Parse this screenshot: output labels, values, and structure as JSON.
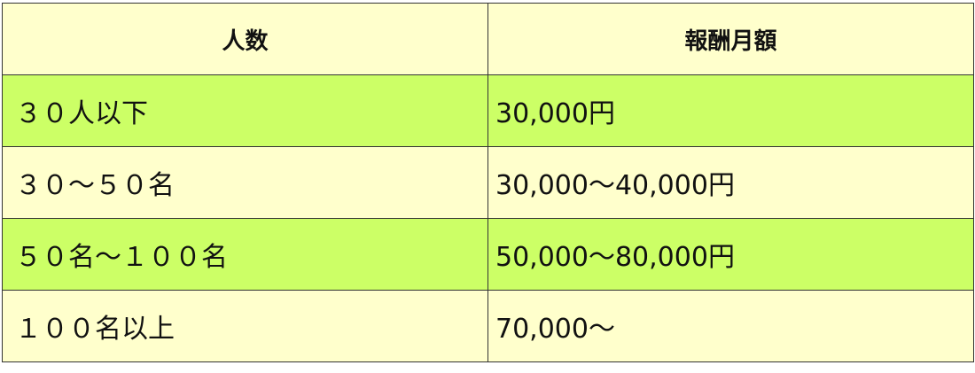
{
  "table": {
    "header": [
      "人数",
      "報酬月額"
    ],
    "rows": [
      [
        "３０人以下",
        "30,000円"
      ],
      [
        "３０～５０名",
        "30,000～40,000円"
      ],
      [
        "５０名～１００名",
        "50,000～80,000円"
      ],
      [
        "１００名以上",
        "70,000～"
      ]
    ]
  }
}
